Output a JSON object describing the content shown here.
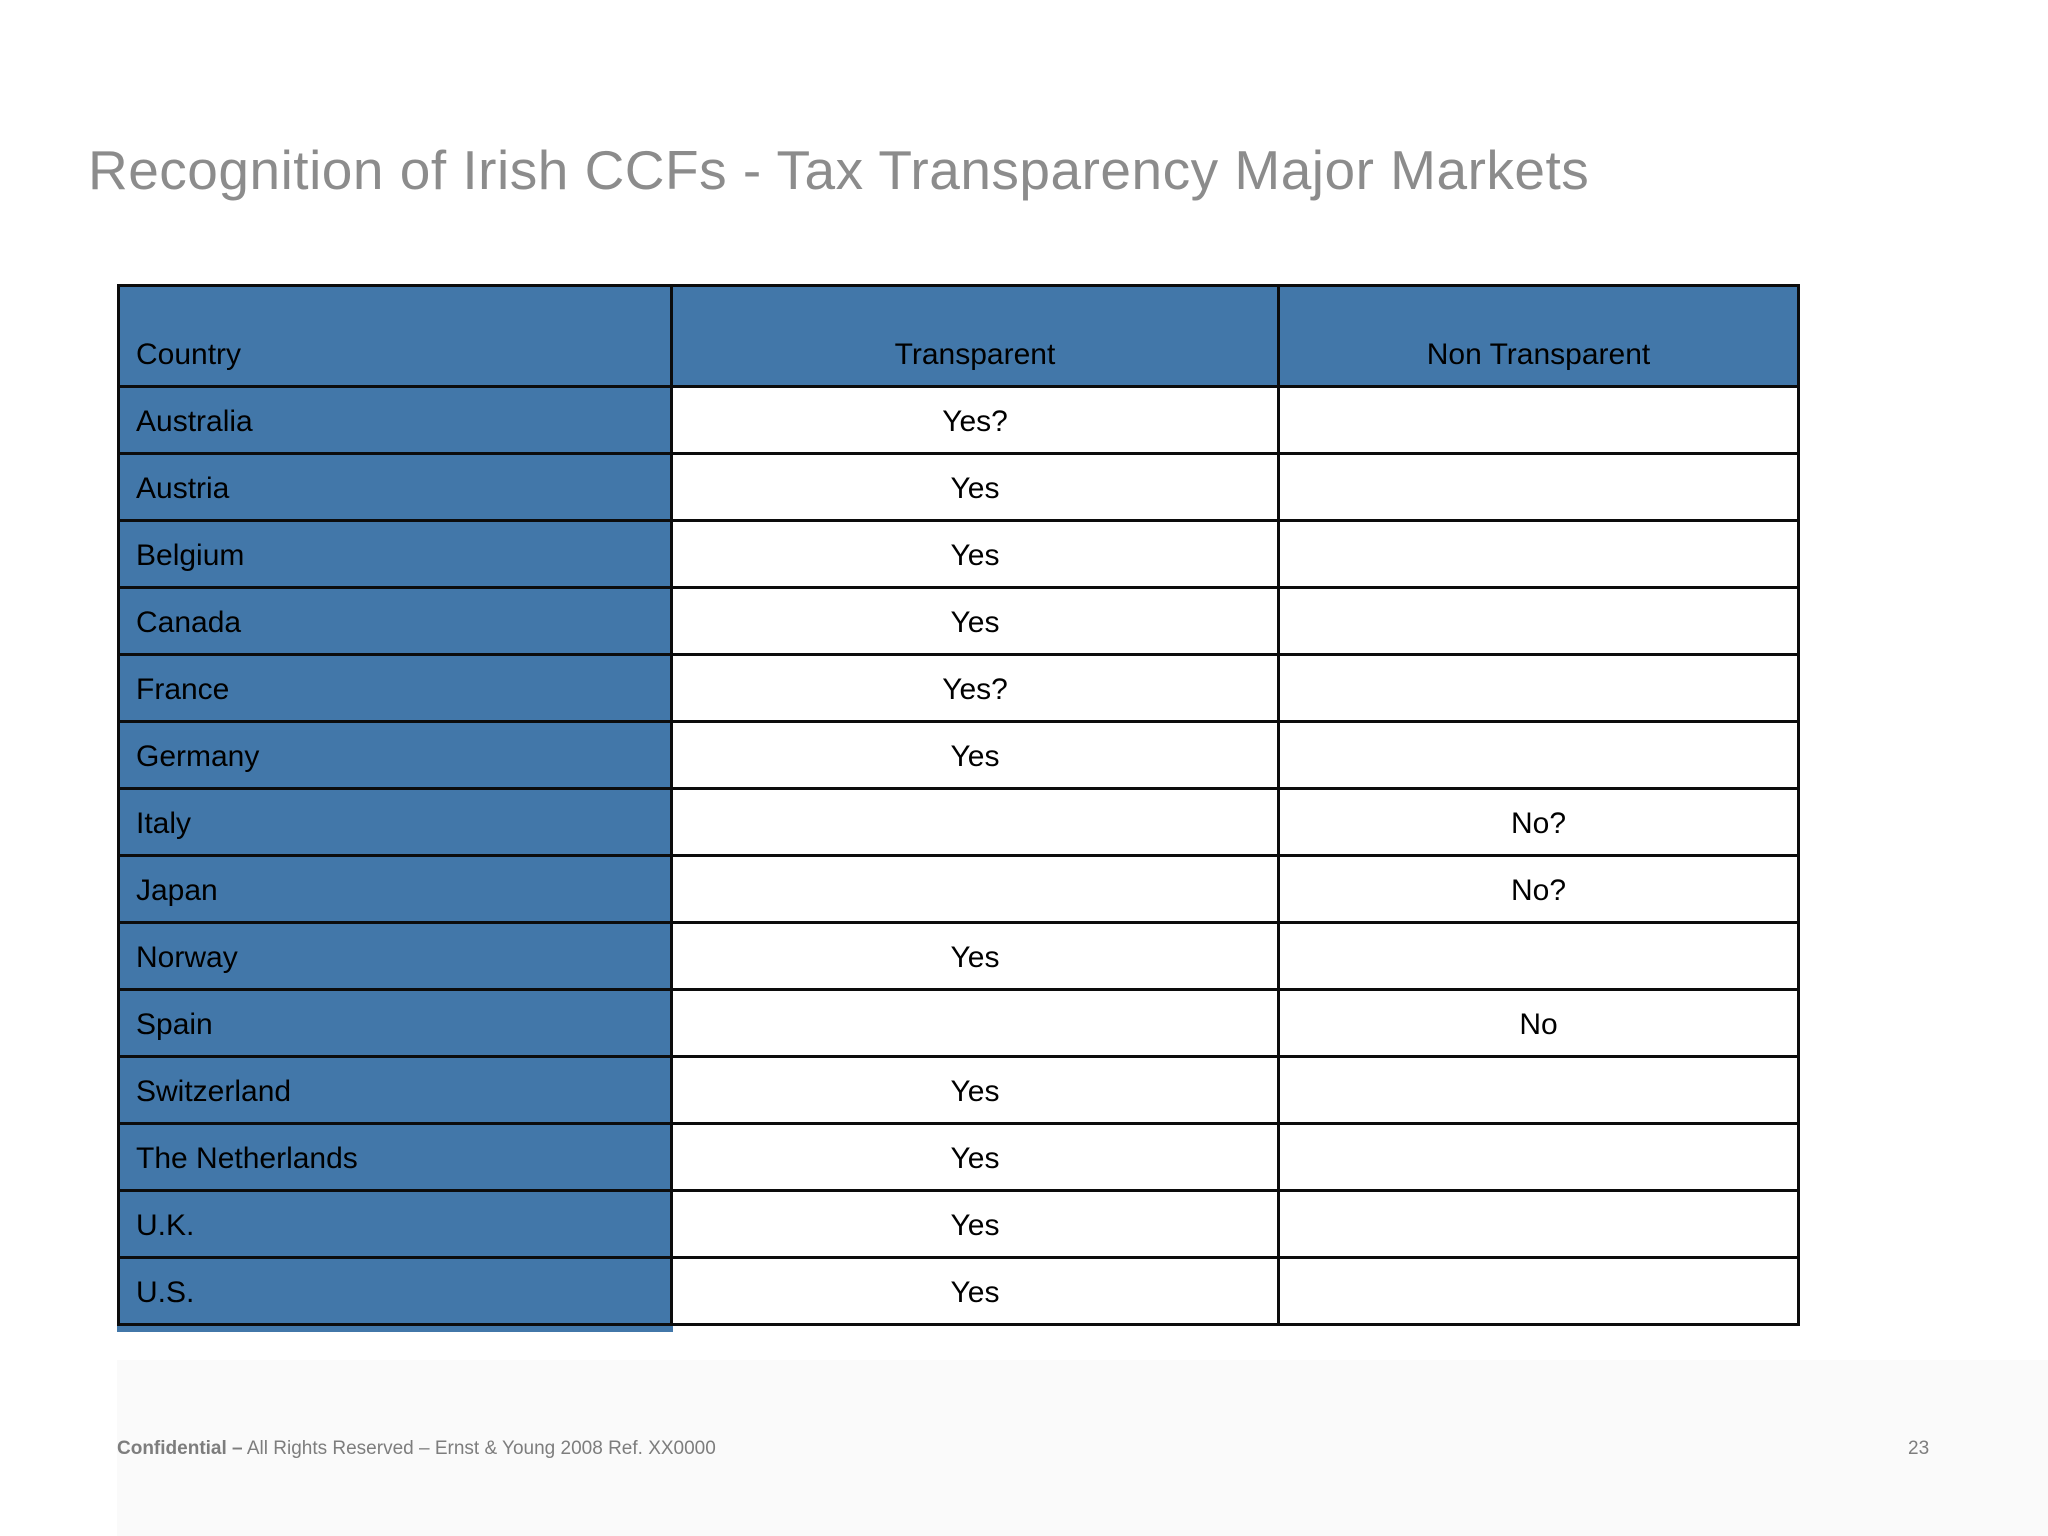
{
  "page": {
    "title": "Recognition of Irish CCFs - Tax Transparency Major Markets",
    "table": {
      "headers": [
        "Country",
        "Transparent",
        "Non Transparent"
      ],
      "rows": [
        {
          "country": "Australia",
          "transparent": "Yes?",
          "non_transparent": ""
        },
        {
          "country": "Austria",
          "transparent": "Yes",
          "non_transparent": ""
        },
        {
          "country": "Belgium",
          "transparent": "Yes",
          "non_transparent": ""
        },
        {
          "country": "Canada",
          "transparent": "Yes",
          "non_transparent": ""
        },
        {
          "country": "France",
          "transparent": "Yes?",
          "non_transparent": ""
        },
        {
          "country": "Germany",
          "transparent": "Yes",
          "non_transparent": ""
        },
        {
          "country": "Italy",
          "transparent": "",
          "non_transparent": "No?"
        },
        {
          "country": "Japan",
          "transparent": "",
          "non_transparent": "No?"
        },
        {
          "country": "Norway",
          "transparent": "Yes",
          "non_transparent": ""
        },
        {
          "country": "Spain",
          "transparent": "",
          "non_transparent": "No"
        },
        {
          "country": "Switzerland",
          "transparent": "Yes",
          "non_transparent": ""
        },
        {
          "country": "The Netherlands",
          "transparent": "Yes",
          "non_transparent": ""
        },
        {
          "country": "U.K.",
          "transparent": "Yes",
          "non_transparent": ""
        },
        {
          "country": "U.S.",
          "transparent": "Yes",
          "non_transparent": ""
        }
      ]
    },
    "footer": {
      "confidential": "Confidential –",
      "rights": " All Rights Reserved – Ernst & Young 2008 Ref. XX0000",
      "page_number": "23"
    },
    "colors": {
      "accent_blue": "#4277a9",
      "border": "#0c0c0c",
      "title_gray": "#8c8c8c",
      "footer_gray": "#7d7d7d",
      "panel_gray": "#fafafa"
    }
  }
}
